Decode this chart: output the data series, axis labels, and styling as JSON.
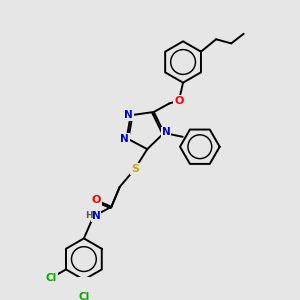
{
  "background_color": "#e6e6e6",
  "atom_colors": {
    "N": "#0000cc",
    "O": "#ff0000",
    "S": "#ccaa00",
    "Cl": "#00aa00",
    "C": "#000000",
    "H": "#555555"
  },
  "bond_color": "#000000",
  "bond_width": 1.4,
  "figsize": [
    3.0,
    3.0
  ],
  "dpi": 100,
  "xlim": [
    0,
    10
  ],
  "ylim": [
    0,
    10
  ]
}
